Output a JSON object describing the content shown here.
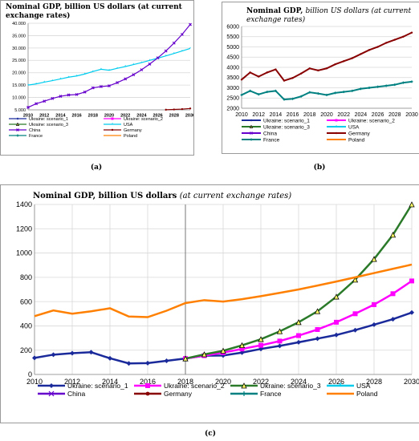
{
  "chart_data": [
    {
      "panel": "(a)",
      "type": "line",
      "title": "Nominal GDP, billion US dollars",
      "subtitle": "(at current exchange rates)",
      "x": [
        2010,
        2011,
        2012,
        2013,
        2014,
        2015,
        2016,
        2017,
        2018,
        2019,
        2020,
        2021,
        2022,
        2023,
        2024,
        2025,
        2026,
        2027,
        2028,
        2029,
        2030
      ],
      "xticks": [
        "2010",
        "2012",
        "2014",
        "2016",
        "2018",
        "2020",
        "2022",
        "2024",
        "2026",
        "2028",
        "2030"
      ],
      "yticks": [
        "5.000",
        "10.000",
        "15.000",
        "20.000",
        "25.000",
        "30.000",
        "35.000",
        "40.000"
      ],
      "ylim": [
        5000,
        40000
      ],
      "series": [
        {
          "name": "Ukraine: scenario_1",
          "color": "#1a2a9a",
          "marker": "diamond",
          "values": [
            null,
            null,
            null,
            null,
            null,
            null,
            null,
            null,
            null,
            null,
            null,
            null,
            null,
            null,
            null,
            null,
            null,
            null,
            null,
            null,
            null
          ]
        },
        {
          "name": "Ukraine: scenario_2",
          "color": "#ff00ff",
          "marker": "square",
          "values": [
            null,
            null,
            null,
            null,
            null,
            null,
            null,
            null,
            null,
            null,
            null,
            null,
            null,
            null,
            null,
            null,
            null,
            null,
            null,
            null,
            null
          ]
        },
        {
          "name": "Ukraine: scenario_3",
          "color": "#2a7a2a",
          "marker": "triangle",
          "values": [
            null,
            null,
            null,
            null,
            null,
            null,
            null,
            null,
            null,
            null,
            null,
            null,
            null,
            null,
            null,
            null,
            null,
            null,
            null,
            null,
            null
          ]
        },
        {
          "name": "USA",
          "color": "#00ccee",
          "marker": "star",
          "values": [
            15000,
            15500,
            16200,
            16800,
            17500,
            18200,
            18700,
            19500,
            20500,
            21400,
            21000,
            21800,
            22500,
            23300,
            24100,
            25000,
            25900,
            26800,
            27800,
            28800,
            29800
          ]
        },
        {
          "name": "China",
          "color": "#6600cc",
          "marker": "x",
          "values": [
            6000,
            7500,
            8500,
            9600,
            10500,
            11000,
            11200,
            12200,
            13900,
            14400,
            14700,
            16000,
            17500,
            19200,
            21200,
            23500,
            26000,
            28800,
            32000,
            35500,
            39500
          ]
        },
        {
          "name": "Germany",
          "color": "#880000",
          "marker": "circle",
          "values": [
            null,
            null,
            null,
            null,
            null,
            null,
            null,
            null,
            null,
            null,
            null,
            null,
            null,
            null,
            null,
            null,
            null,
            5050,
            5150,
            5300,
            5550
          ]
        },
        {
          "name": "France",
          "color": "#008080",
          "marker": "plus",
          "values": [
            null,
            null,
            null,
            null,
            null,
            null,
            null,
            null,
            null,
            null,
            null,
            null,
            null,
            null,
            null,
            null,
            null,
            null,
            null,
            null,
            null
          ]
        },
        {
          "name": "Poland",
          "color": "#ff8000",
          "marker": "none",
          "values": [
            null,
            null,
            null,
            null,
            null,
            null,
            null,
            null,
            null,
            null,
            null,
            null,
            null,
            null,
            null,
            null,
            null,
            null,
            null,
            null,
            null
          ]
        }
      ]
    },
    {
      "panel": "(b)",
      "type": "line",
      "title": "Nominal GDP,",
      "subtitle": "billion US dollars (at current exchange rates)",
      "x": [
        2010,
        2011,
        2012,
        2013,
        2014,
        2015,
        2016,
        2017,
        2018,
        2019,
        2020,
        2021,
        2022,
        2023,
        2024,
        2025,
        2026,
        2027,
        2028,
        2029,
        2030
      ],
      "xticks": [
        "2010",
        "2012",
        "2014",
        "2016",
        "2018",
        "2020",
        "2022",
        "2024",
        "2026",
        "2028",
        "2030"
      ],
      "yticks": [
        "2000",
        "2500",
        "3000",
        "3500",
        "4000",
        "4500",
        "5000",
        "5500",
        "6000"
      ],
      "ylim": [
        2000,
        6000
      ],
      "series": [
        {
          "name": "Ukraine: scenario_1",
          "color": "#1a2a9a",
          "marker": "diamond",
          "values": [
            null,
            null,
            null,
            null,
            null,
            null,
            null,
            null,
            null,
            null,
            null,
            null,
            null,
            null,
            null,
            null,
            null,
            null,
            null,
            null,
            null
          ]
        },
        {
          "name": "Ukraine: scenario_2",
          "color": "#ff00ff",
          "marker": "square",
          "values": [
            null,
            null,
            null,
            null,
            null,
            null,
            null,
            null,
            null,
            null,
            null,
            null,
            null,
            null,
            null,
            null,
            null,
            null,
            null,
            null,
            null
          ]
        },
        {
          "name": "Ukraine: scenario_3",
          "color": "#2a7a2a",
          "marker": "triangle",
          "values": [
            null,
            null,
            null,
            null,
            null,
            null,
            null,
            null,
            null,
            null,
            null,
            null,
            null,
            null,
            null,
            null,
            null,
            null,
            null,
            null,
            null
          ]
        },
        {
          "name": "USA",
          "color": "#00ccee",
          "marker": "star",
          "values": [
            null,
            null,
            null,
            null,
            null,
            null,
            null,
            null,
            null,
            null,
            null,
            null,
            null,
            null,
            null,
            null,
            null,
            null,
            null,
            null,
            null
          ]
        },
        {
          "name": "China",
          "color": "#6600cc",
          "marker": "x",
          "values": [
            null,
            null,
            null,
            null,
            null,
            null,
            null,
            null,
            null,
            null,
            null,
            null,
            null,
            null,
            null,
            null,
            null,
            null,
            null,
            null,
            null
          ]
        },
        {
          "name": "Germany",
          "color": "#880000",
          "marker": "circle",
          "values": [
            3400,
            3750,
            3550,
            3750,
            3900,
            3350,
            3480,
            3700,
            3950,
            3850,
            3950,
            4150,
            4300,
            4450,
            4650,
            4850,
            5000,
            5200,
            5350,
            5500,
            5700
          ]
        },
        {
          "name": "France",
          "color": "#008080",
          "marker": "plus",
          "values": [
            2650,
            2850,
            2680,
            2800,
            2850,
            2430,
            2460,
            2580,
            2780,
            2720,
            2650,
            2750,
            2800,
            2850,
            2950,
            3000,
            3050,
            3100,
            3150,
            3250,
            3300
          ]
        },
        {
          "name": "Poland",
          "color": "#ff8000",
          "marker": "none",
          "values": [
            null,
            null,
            null,
            null,
            null,
            null,
            null,
            null,
            null,
            null,
            null,
            null,
            null,
            null,
            null,
            null,
            null,
            null,
            null,
            null,
            null
          ]
        }
      ]
    },
    {
      "panel": "(c)",
      "type": "line",
      "title": "Nominal GDP, billion US dollars",
      "subtitle": "(at current exchange rates)",
      "x": [
        2010,
        2011,
        2012,
        2013,
        2014,
        2015,
        2016,
        2017,
        2018,
        2019,
        2020,
        2021,
        2022,
        2023,
        2024,
        2025,
        2026,
        2027,
        2028,
        2029,
        2030
      ],
      "xticks": [
        "2010",
        "2012",
        "2014",
        "2016",
        "2018",
        "2020",
        "2022",
        "2024",
        "2026",
        "2028",
        "2030"
      ],
      "yticks": [
        "0",
        "200",
        "400",
        "600",
        "800",
        "1000",
        "1200",
        "1400"
      ],
      "ylim": [
        0,
        1400
      ],
      "vline_x": 2018,
      "series": [
        {
          "name": "Ukraine: scenario_1",
          "color": "#1a2a9a",
          "marker": "diamond",
          "values": [
            136,
            163,
            175,
            183,
            133,
            91,
            93,
            112,
            131,
            154,
            156,
            180,
            210,
            235,
            265,
            295,
            325,
            365,
            410,
            455,
            510
          ]
        },
        {
          "name": "Ukraine: scenario_2",
          "color": "#ff00ff",
          "marker": "square",
          "values": [
            null,
            null,
            null,
            null,
            null,
            null,
            null,
            null,
            131,
            155,
            180,
            210,
            240,
            275,
            320,
            370,
            430,
            500,
            575,
            665,
            770
          ]
        },
        {
          "name": "Ukraine: scenario_3",
          "color": "#2a7a2a",
          "marker": "triangle",
          "values": [
            null,
            null,
            null,
            null,
            null,
            null,
            null,
            null,
            131,
            165,
            195,
            240,
            290,
            355,
            430,
            520,
            640,
            780,
            950,
            1150,
            1400
          ]
        },
        {
          "name": "USA",
          "color": "#00ccee",
          "marker": "star",
          "values": [
            null,
            null,
            null,
            null,
            null,
            null,
            null,
            null,
            null,
            null,
            null,
            null,
            null,
            null,
            null,
            null,
            null,
            null,
            null,
            null,
            null
          ]
        },
        {
          "name": "China",
          "color": "#6600cc",
          "marker": "x",
          "values": [
            null,
            null,
            null,
            null,
            null,
            null,
            null,
            null,
            null,
            null,
            null,
            null,
            null,
            null,
            null,
            null,
            null,
            null,
            null,
            null,
            null
          ]
        },
        {
          "name": "Germany",
          "color": "#880000",
          "marker": "circle",
          "values": [
            null,
            null,
            null,
            null,
            null,
            null,
            null,
            null,
            null,
            null,
            null,
            null,
            null,
            null,
            null,
            null,
            null,
            null,
            null,
            null,
            null
          ]
        },
        {
          "name": "France",
          "color": "#008080",
          "marker": "plus",
          "values": [
            null,
            null,
            null,
            null,
            null,
            null,
            null,
            null,
            null,
            null,
            null,
            null,
            null,
            null,
            null,
            null,
            null,
            null,
            null,
            null,
            null
          ]
        },
        {
          "name": "Poland",
          "color": "#ff8000",
          "marker": "none",
          "values": [
            480,
            527,
            500,
            520,
            545,
            477,
            472,
            525,
            588,
            612,
            600,
            620,
            645,
            672,
            700,
            732,
            765,
            800,
            835,
            870,
            905
          ]
        }
      ]
    }
  ]
}
